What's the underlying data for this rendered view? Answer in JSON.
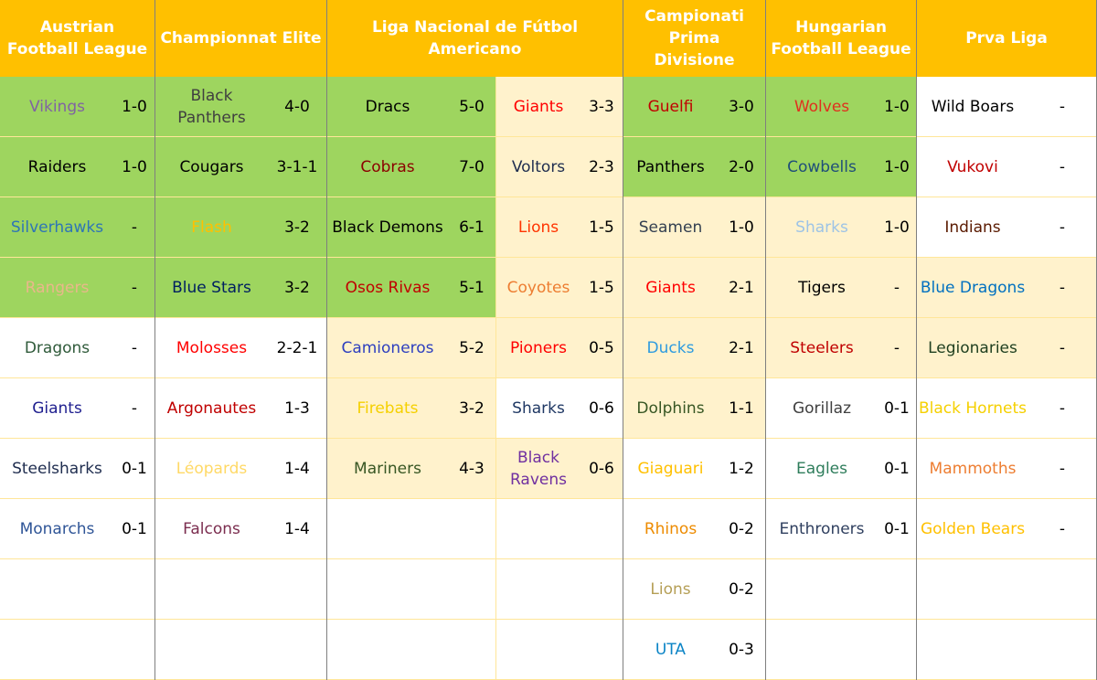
{
  "leagues": [
    {
      "name": "Austrian Football League",
      "groups": [
        [
          {
            "name": "Vikings",
            "record": "1-0",
            "color": "#8064a2",
            "fill": "#9ed55f"
          },
          {
            "name": "Raiders",
            "record": "1-0",
            "color": "#000000",
            "fill": "#9ed55f"
          },
          {
            "name": "Silverhawks",
            "record": "-",
            "color": "#2e75b6",
            "fill": "#9ed55f"
          },
          {
            "name": "Rangers",
            "record": "-",
            "color": "#e8b88a",
            "fill": "#9ed55f"
          },
          {
            "name": "Dragons",
            "record": "-",
            "color": "#2f5a3a",
            "fill": "#ffffff"
          },
          {
            "name": "Giants",
            "record": "-",
            "color": "#1f1f8f",
            "fill": "#ffffff"
          },
          {
            "name": "Steelsharks",
            "record": "0-1",
            "color": "#1f2d4f",
            "fill": "#ffffff"
          },
          {
            "name": "Monarchs",
            "record": "0-1",
            "color": "#2f5597",
            "fill": "#ffffff"
          }
        ]
      ]
    },
    {
      "name": "Championnat Elite",
      "groups": [
        [
          {
            "name": "Black Panthers",
            "record": "4-0",
            "color": "#404040",
            "fill": "#9ed55f"
          },
          {
            "name": "Cougars",
            "record": "3-1-1",
            "color": "#000000",
            "fill": "#9ed55f"
          },
          {
            "name": "Flash",
            "record": "3-2",
            "color": "#ffc000",
            "fill": "#9ed55f"
          },
          {
            "name": "Blue Stars",
            "record": "3-2",
            "color": "#002060",
            "fill": "#9ed55f"
          },
          {
            "name": "Molosses",
            "record": "2-2-1",
            "color": "#ff0000",
            "fill": "#ffffff"
          },
          {
            "name": "Argonautes",
            "record": "1-3",
            "color": "#c00000",
            "fill": "#ffffff"
          },
          {
            "name": "Léopards",
            "record": "1-4",
            "color": "#ffd966",
            "fill": "#ffffff"
          },
          {
            "name": "Falcons",
            "record": "1-4",
            "color": "#7b2d4f",
            "fill": "#ffffff"
          }
        ]
      ]
    },
    {
      "name": "Liga Nacional de Fútbol Americano",
      "groups": [
        [
          {
            "name": "Dracs",
            "record": "5-0",
            "color": "#000000",
            "fill": "#9ed55f"
          },
          {
            "name": "Cobras",
            "record": "7-0",
            "color": "#8b0000",
            "fill": "#9ed55f"
          },
          {
            "name": "Black Demons",
            "record": "6-1",
            "color": "#000000",
            "fill": "#9ed55f"
          },
          {
            "name": "Osos Rivas",
            "record": "5-1",
            "color": "#c00000",
            "fill": "#9ed55f"
          },
          {
            "name": "Camioneros",
            "record": "5-2",
            "color": "#2e3fbf",
            "fill": "#fff2cc"
          },
          {
            "name": "Firebats",
            "record": "3-2",
            "color": "#f5d000",
            "fill": "#fff2cc"
          },
          {
            "name": "Mariners",
            "record": "4-3",
            "color": "#375623",
            "fill": "#fff2cc"
          }
        ],
        [
          {
            "name": "Giants",
            "record": "3-3",
            "color": "#ff0000",
            "fill": "#fff2cc"
          },
          {
            "name": "Voltors",
            "record": "2-3",
            "color": "#1f2d4f",
            "fill": "#fff2cc"
          },
          {
            "name": "Lions",
            "record": "1-5",
            "color": "#ff3300",
            "fill": "#fff2cc"
          },
          {
            "name": "Coyotes",
            "record": "1-5",
            "color": "#ed7d31",
            "fill": "#fff2cc"
          },
          {
            "name": "Pioners",
            "record": "0-5",
            "color": "#ff0000",
            "fill": "#fff2cc"
          },
          {
            "name": "Sharks",
            "record": "0-6",
            "color": "#1f3864",
            "fill": "#ffffff"
          },
          {
            "name": "Black Ravens",
            "record": "0-6",
            "color": "#7030a0",
            "fill": "#fff2cc"
          }
        ]
      ]
    },
    {
      "name": "Campionati Prima Divisione",
      "groups": [
        [
          {
            "name": "Guelfi",
            "record": "3-0",
            "color": "#c00000",
            "fill": "#9ed55f"
          },
          {
            "name": "Panthers",
            "record": "2-0",
            "color": "#000000",
            "fill": "#9ed55f"
          },
          {
            "name": "Seamen",
            "record": "1-0",
            "color": "#333f50",
            "fill": "#fff2cc"
          },
          {
            "name": "Giants",
            "record": "2-1",
            "color": "#ff0000",
            "fill": "#fff2cc"
          },
          {
            "name": "Ducks",
            "record": "2-1",
            "color": "#2e9bdf",
            "fill": "#fff2cc"
          },
          {
            "name": "Dolphins",
            "record": "1-1",
            "color": "#375623",
            "fill": "#fff2cc"
          },
          {
            "name": "Giaguari",
            "record": "1-2",
            "color": "#ffc000",
            "fill": "#ffffff"
          },
          {
            "name": "Rhinos",
            "record": "0-2",
            "color": "#ed8b00",
            "fill": "#ffffff"
          },
          {
            "name": "Lions",
            "record": "0-2",
            "color": "#b59f56",
            "fill": "#ffffff"
          },
          {
            "name": "UTA",
            "record": "0-3",
            "color": "#0b84c6",
            "fill": "#ffffff"
          }
        ]
      ]
    },
    {
      "name": "Hungarian Football League",
      "groups": [
        [
          {
            "name": "Wolves",
            "record": "1-0",
            "color": "#e0301e",
            "fill": "#9ed55f"
          },
          {
            "name": "Cowbells",
            "record": "1-0",
            "color": "#1f4e79",
            "fill": "#9ed55f"
          },
          {
            "name": "Sharks",
            "record": "1-0",
            "color": "#9dc3e6",
            "fill": "#fff2cc"
          },
          {
            "name": "Tigers",
            "record": "-",
            "color": "#000000",
            "fill": "#fff2cc"
          },
          {
            "name": "Steelers",
            "record": "-",
            "color": "#c00000",
            "fill": "#fff2cc"
          },
          {
            "name": "Gorillaz",
            "record": "0-1",
            "color": "#404040",
            "fill": "#ffffff"
          },
          {
            "name": "Eagles",
            "record": "0-1",
            "color": "#2e7d5b",
            "fill": "#ffffff"
          },
          {
            "name": "Enthroners",
            "record": "0-1",
            "color": "#2f3f5f",
            "fill": "#ffffff"
          }
        ]
      ]
    },
    {
      "name": "Prva Liga",
      "groups": [
        [
          {
            "name": "Wild Boars",
            "record": "-",
            "color": "#000000",
            "fill": "#ffffff"
          },
          {
            "name": "Vukovi",
            "record": "-",
            "color": "#c00000",
            "fill": "#ffffff"
          },
          {
            "name": "Indians",
            "record": "-",
            "color": "#5a1a00",
            "fill": "#ffffff"
          },
          {
            "name": "Blue Dragons",
            "record": "-",
            "color": "#0070c0",
            "fill": "#fff2cc"
          },
          {
            "name": "Legionaries",
            "record": "-",
            "color": "#1f3f1f",
            "fill": "#fff2cc"
          },
          {
            "name": "Black Hornets",
            "record": "-",
            "color": "#f5d000",
            "fill": "#ffffff"
          },
          {
            "name": "Mammoths",
            "record": "-",
            "color": "#ed7d31",
            "fill": "#ffffff"
          },
          {
            "name": "Golden Bears",
            "record": "-",
            "color": "#ffc000",
            "fill": "#ffffff"
          }
        ]
      ]
    }
  ]
}
